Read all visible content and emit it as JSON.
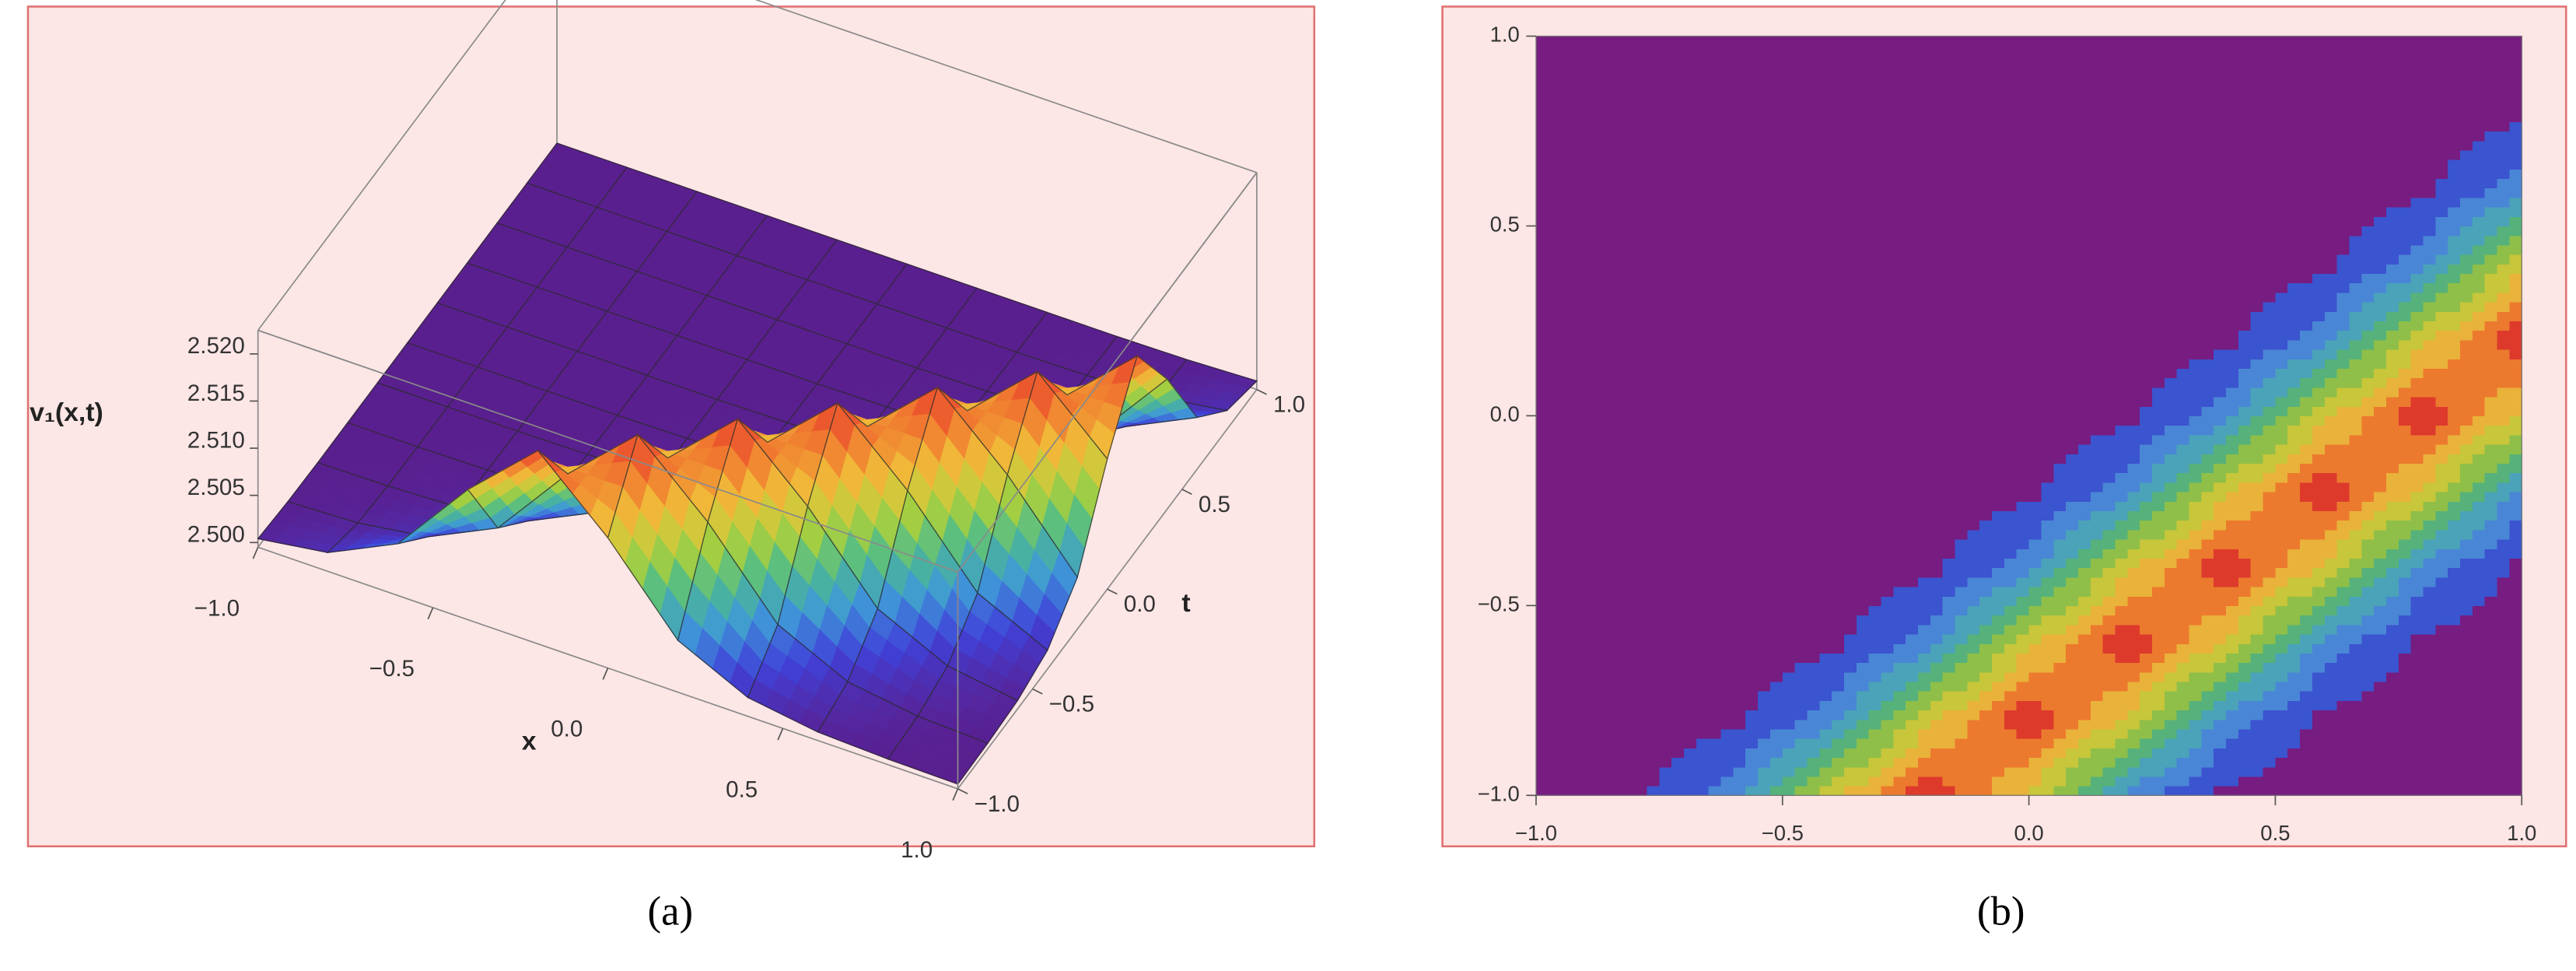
{
  "chart_data": [
    {
      "type": "surface",
      "caption": "(a)",
      "x_label": "x",
      "y_label": "t",
      "z_label": "v₁(x,t)",
      "xlim": [
        -1,
        1
      ],
      "ylim": [
        -1,
        1
      ],
      "zlim": [
        2.4995,
        2.5225
      ],
      "xticks": [
        {
          "value": -1,
          "label": "−1.0"
        },
        {
          "value": -0.5,
          "label": "−0.5"
        },
        {
          "value": 0,
          "label": "0.0"
        },
        0.5,
        {
          "value": 1,
          "label": "1.0"
        }
      ],
      "yticks": [
        {
          "value": -1,
          "label": "−1.0"
        },
        {
          "value": -0.5,
          "label": "−0.5"
        },
        {
          "value": 0,
          "label": "0.0"
        },
        0.5,
        {
          "value": 1,
          "label": "1.0"
        }
      ],
      "zticks": [
        {
          "value": 2.5,
          "label": "2.500"
        },
        {
          "value": 2.505,
          "label": "2.505"
        },
        {
          "value": 2.51,
          "label": "2.510"
        },
        {
          "value": 2.515,
          "label": "2.515"
        },
        {
          "value": 2.52,
          "label": "2.520"
        }
      ],
      "colorscale": [
        "#5a1f8e",
        "#4040d8",
        "#3f98d8",
        "#4dbb8c",
        "#a8cf3e",
        "#f0c33a",
        "#f07a30",
        "#e8352a"
      ],
      "mesh_color": "#2a2a2a",
      "box_color": "#8a8a8a",
      "x": [
        -1,
        -0.8,
        -0.6,
        -0.4,
        -0.2,
        0,
        0.2,
        0.4,
        0.6,
        0.8,
        1
      ],
      "y": [
        -1,
        -0.8,
        -0.6,
        -0.4,
        -0.2,
        0,
        0.2,
        0.4,
        0.6,
        0.8,
        1
      ],
      "z": [
        [
          2.5004,
          2.5015,
          2.505,
          2.5133,
          2.52,
          2.5133,
          2.505,
          2.5015,
          2.5004,
          2.5001,
          2.5
        ],
        [
          2.5001,
          2.5004,
          2.5015,
          2.505,
          2.5133,
          2.52,
          2.5133,
          2.505,
          2.5015,
          2.5004,
          2.5001
        ],
        [
          2.5,
          2.5001,
          2.5004,
          2.5015,
          2.505,
          2.5133,
          2.52,
          2.5133,
          2.505,
          2.5015,
          2.5004
        ],
        [
          2.5,
          2.5,
          2.5001,
          2.5004,
          2.5015,
          2.505,
          2.5133,
          2.52,
          2.5133,
          2.505,
          2.5015
        ],
        [
          2.5,
          2.5,
          2.5,
          2.5001,
          2.5004,
          2.5015,
          2.505,
          2.5133,
          2.52,
          2.5133,
          2.505
        ],
        [
          2.5,
          2.5,
          2.5,
          2.5,
          2.5001,
          2.5004,
          2.5015,
          2.505,
          2.5133,
          2.52,
          2.5133
        ],
        [
          2.5,
          2.5,
          2.5,
          2.5,
          2.5,
          2.5001,
          2.5004,
          2.5015,
          2.505,
          2.5133,
          2.52
        ],
        [
          2.5,
          2.5,
          2.5,
          2.5,
          2.5,
          2.5,
          2.5001,
          2.5004,
          2.5015,
          2.505,
          2.5133
        ],
        [
          2.5,
          2.5,
          2.5,
          2.5,
          2.5,
          2.5,
          2.5,
          2.5001,
          2.5004,
          2.5015,
          2.505
        ],
        [
          2.5,
          2.5,
          2.5,
          2.5,
          2.5,
          2.5,
          2.5,
          2.5,
          2.5001,
          2.5004,
          2.5015
        ],
        [
          2.5,
          2.5,
          2.5,
          2.5,
          2.5,
          2.5,
          2.5,
          2.5,
          2.5,
          2.5001,
          2.5004
        ]
      ]
    },
    {
      "type": "contour",
      "caption": "(b)",
      "xlim": [
        -1,
        1
      ],
      "ylim": [
        -1,
        1
      ],
      "xticks": [
        {
          "value": -1,
          "label": "−1.0"
        },
        {
          "value": -0.5,
          "label": "−0.5"
        },
        {
          "value": 0,
          "label": "0.0"
        },
        0.5,
        {
          "value": 1,
          "label": "1.0"
        }
      ],
      "yticks": [
        {
          "value": -1,
          "label": "−1.0"
        },
        {
          "value": -0.5,
          "label": "−0.5"
        },
        {
          "value": 0,
          "label": "0.0"
        },
        0.5,
        {
          "value": 1,
          "label": "1.0"
        }
      ],
      "levels": [
        2.502,
        2.504,
        2.506,
        2.508,
        2.51,
        2.512,
        2.514,
        2.516,
        2.518
      ],
      "colors": [
        "#771c80",
        "#3b54cf",
        "#4a86d6",
        "#4aa3b8",
        "#56b27a",
        "#8fbf48",
        "#c8c63a",
        "#e9b23a",
        "#ec7a2e",
        "#dd3a2c"
      ],
      "x": [
        -1,
        -0.8,
        -0.6,
        -0.4,
        -0.2,
        0,
        0.2,
        0.4,
        0.6,
        0.8,
        1
      ],
      "y": [
        -1,
        -0.8,
        -0.6,
        -0.4,
        -0.2,
        0,
        0.2,
        0.4,
        0.6,
        0.8,
        1
      ],
      "z": [
        [
          2.5004,
          2.5015,
          2.505,
          2.5133,
          2.52,
          2.5133,
          2.505,
          2.5015,
          2.5004,
          2.5001,
          2.5
        ],
        [
          2.5001,
          2.5004,
          2.5015,
          2.505,
          2.5133,
          2.52,
          2.5133,
          2.505,
          2.5015,
          2.5004,
          2.5001
        ],
        [
          2.5,
          2.5001,
          2.5004,
          2.5015,
          2.505,
          2.5133,
          2.52,
          2.5133,
          2.505,
          2.5015,
          2.5004
        ],
        [
          2.5,
          2.5,
          2.5001,
          2.5004,
          2.5015,
          2.505,
          2.5133,
          2.52,
          2.5133,
          2.505,
          2.5015
        ],
        [
          2.5,
          2.5,
          2.5,
          2.5001,
          2.5004,
          2.5015,
          2.505,
          2.5133,
          2.52,
          2.5133,
          2.505
        ],
        [
          2.5,
          2.5,
          2.5,
          2.5,
          2.5001,
          2.5004,
          2.5015,
          2.505,
          2.5133,
          2.52,
          2.5133
        ],
        [
          2.5,
          2.5,
          2.5,
          2.5,
          2.5,
          2.5001,
          2.5004,
          2.5015,
          2.505,
          2.5133,
          2.52
        ],
        [
          2.5,
          2.5,
          2.5,
          2.5,
          2.5,
          2.5,
          2.5001,
          2.5004,
          2.5015,
          2.505,
          2.5133
        ],
        [
          2.5,
          2.5,
          2.5,
          2.5,
          2.5,
          2.5,
          2.5,
          2.5001,
          2.5004,
          2.5015,
          2.505
        ],
        [
          2.5,
          2.5,
          2.5,
          2.5,
          2.5,
          2.5,
          2.5,
          2.5,
          2.5001,
          2.5004,
          2.5015
        ],
        [
          2.5,
          2.5,
          2.5,
          2.5,
          2.5,
          2.5,
          2.5,
          2.5,
          2.5,
          2.5001,
          2.5004
        ]
      ]
    }
  ]
}
